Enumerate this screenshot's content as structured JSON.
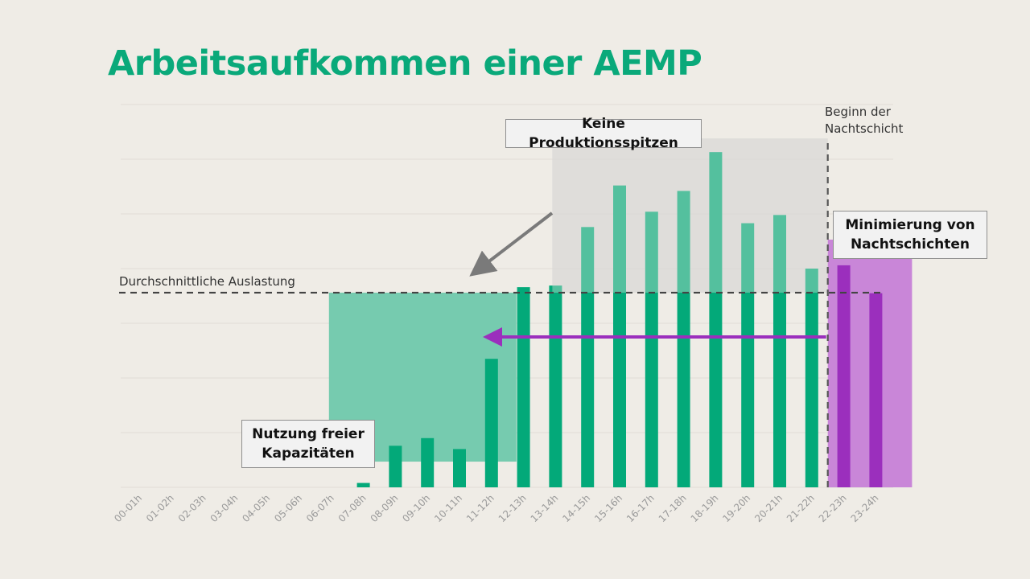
{
  "title": "Arbeitsaufkommen einer AEMP",
  "annotations": {
    "average_label": "Durchschnittliche Auslastung",
    "night_start_line1": "Beginn der",
    "night_start_line2": "Nachtschicht",
    "callout_peaks": "Keine Produktionsspitzen",
    "callout_night_line1": "Minimierung von",
    "callout_night_line2": "Nachtschichten",
    "callout_free_line1": "Nutzung freier",
    "callout_free_line2": "Kapazitäten"
  },
  "colors": {
    "day_bar": "#03a979",
    "night_bar": "#9b2fbd",
    "green_area": "#76cbaf",
    "grey_area": "#c4c4c4",
    "purple_area": "#c986d8",
    "arrow_grey": "#7a7a7a",
    "arrow_purple": "#9b2fbd",
    "title": "#0aa97a"
  },
  "chart_data": {
    "type": "bar",
    "categories": [
      "00-01h",
      "01-02h",
      "02-03h",
      "03-04h",
      "04-05h",
      "05-06h",
      "06-07h",
      "07-08h",
      "08-09h",
      "09-10h",
      "10-11h",
      "11-12h",
      "12-13h",
      "13-14h",
      "14-15h",
      "15-16h",
      "16-17h",
      "17-18h",
      "18-19h",
      "19-20h",
      "20-21h",
      "21-22h",
      "22-23h",
      "23-24h"
    ],
    "values": [
      0,
      0,
      0,
      0,
      0,
      0,
      0,
      0.8,
      7.6,
      9.0,
      7.0,
      23.5,
      36.6,
      36.9,
      47.6,
      55.2,
      50.4,
      54.2,
      61.3,
      48.3,
      49.8,
      40.0,
      40.6,
      35.5
    ],
    "night_categories": [
      "22-23h",
      "23-24h"
    ],
    "average": 35.6,
    "ylim": [
      0,
      70
    ],
    "grid": true,
    "highlights": {
      "free_capacity": {
        "from": "06-07h",
        "to": "11-12h"
      },
      "no_peaks": {
        "from": "13-14h",
        "to": "21-22h"
      },
      "night_shift": {
        "from": "22-23h",
        "to": "23-24h"
      }
    }
  }
}
